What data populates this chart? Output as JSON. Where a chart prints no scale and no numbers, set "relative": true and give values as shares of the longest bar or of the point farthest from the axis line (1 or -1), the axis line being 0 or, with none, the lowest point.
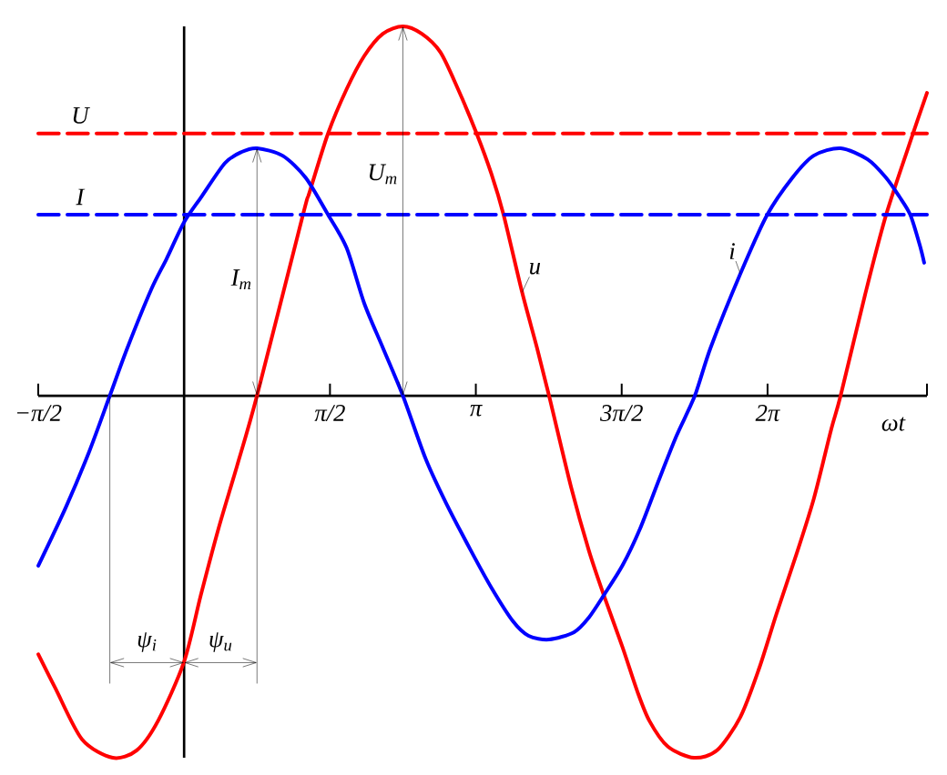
{
  "chart_data": {
    "type": "line",
    "relative": true,
    "line_style": "solid",
    "xlabel": "ωt",
    "xlim": [
      -1.5708,
      8.0
    ],
    "xticks": [
      {
        "value": -1.5708,
        "label": "−π/2"
      },
      {
        "value": 1.5708,
        "label": "π/2"
      },
      {
        "value": 3.1416,
        "label": "π"
      },
      {
        "value": 4.7124,
        "label": "3π/2"
      },
      {
        "value": 6.2832,
        "label": "2π"
      },
      {
        "value": 8.0,
        "label": null
      }
    ],
    "series": [
      {
        "name": "u",
        "color": "#ff0000",
        "x": [
          -1.57,
          -1.39,
          -1.1,
          -0.77,
          -0.51,
          -0.28,
          0.0,
          0.18,
          0.37,
          0.57,
          0.785,
          1.28,
          1.35,
          1.55,
          1.75,
          1.94,
          2.14,
          2.356,
          2.56,
          2.76,
          2.95,
          3.15,
          3.31,
          3.44,
          3.64,
          3.8,
          3.93,
          4.17,
          4.36,
          4.52,
          4.72,
          4.88,
          5.01,
          5.21,
          5.49,
          5.74,
          5.99,
          6.19,
          6.38,
          6.58,
          6.78,
          6.97,
          7.07,
          7.33,
          7.56,
          7.85,
          8.0
        ],
        "values": [
          -0.7,
          -0.79,
          -0.93,
          -0.98,
          -0.96,
          -0.88,
          -0.72,
          -0.54,
          -0.36,
          -0.19,
          0,
          0.49,
          0.55,
          0.71,
          0.83,
          0.92,
          0.98,
          1,
          0.98,
          0.93,
          0.83,
          0.71,
          0.6,
          0.49,
          0.28,
          0.13,
          0,
          -0.25,
          -0.42,
          -0.54,
          -0.68,
          -0.8,
          -0.88,
          -0.95,
          -0.98,
          -0.96,
          -0.87,
          -0.74,
          -0.59,
          -0.44,
          -0.28,
          -0.09,
          0,
          0.27,
          0.49,
          0.71,
          0.82
        ]
      },
      {
        "name": "i",
        "color": "#0000ff",
        "x": [
          -1.57,
          -1.27,
          -1.02,
          -0.8,
          -0.61,
          -0.35,
          -0.19,
          0.0,
          0.19,
          0.44,
          0.62,
          0.785,
          1.06,
          1.31,
          1.55,
          1.75,
          1.94,
          2.14,
          2.356,
          2.6,
          2.82,
          3.09,
          3.31,
          3.54,
          3.71,
          3.93,
          4.2,
          4.36,
          4.52,
          4.72,
          4.91,
          5.11,
          5.3,
          5.5,
          5.67,
          5.99,
          6.28,
          6.55,
          6.78,
          7.07,
          7.36,
          7.56,
          7.7,
          7.82,
          7.92,
          7.97
        ],
        "values": [
          -0.46,
          -0.3,
          -0.15,
          0,
          0.13,
          0.29,
          0.37,
          0.47,
          0.54,
          0.63,
          0.66,
          0.67,
          0.65,
          0.59,
          0.49,
          0.4,
          0.25,
          0.13,
          0,
          -0.17,
          -0.29,
          -0.42,
          -0.52,
          -0.61,
          -0.65,
          -0.66,
          -0.64,
          -0.6,
          -0.54,
          -0.46,
          -0.36,
          -0.23,
          -0.11,
          0,
          0.13,
          0.33,
          0.49,
          0.59,
          0.65,
          0.67,
          0.64,
          0.59,
          0.54,
          0.49,
          0.41,
          0.36
        ]
      }
    ],
    "ref_lines": [
      {
        "axis": "y",
        "value": 0.71,
        "label": "U",
        "color": "#ff0000",
        "line_style": "dashed"
      },
      {
        "axis": "y",
        "value": 0.49,
        "label": "I",
        "color": "#0000ff",
        "line_style": "dashed"
      }
    ],
    "annotations": [
      "U$_{m}$",
      "I$_{m}$",
      "ψ$_{i}$",
      "ψ$_{u}$"
    ]
  }
}
